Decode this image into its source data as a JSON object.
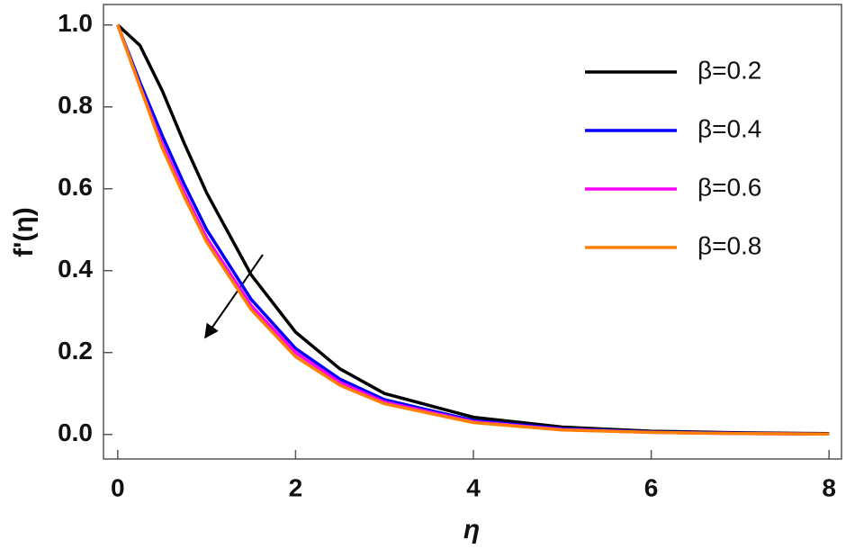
{
  "chart_data": {
    "type": "line",
    "x_label": "η",
    "y_label": "f'(η)",
    "x": [
      0,
      0.25,
      0.5,
      0.75,
      1,
      1.5,
      2,
      2.5,
      3,
      4,
      5,
      6,
      7,
      8
    ],
    "series": [
      {
        "name": "β=0.2",
        "color": "#000000",
        "values": [
          1,
          0.95,
          0.84,
          0.71,
          0.59,
          0.39,
          0.25,
          0.16,
          0.1,
          0.042,
          0.018,
          0.008,
          0.004,
          0.002
        ]
      },
      {
        "name": "β=0.4",
        "color": "#0000ff",
        "values": [
          1,
          0.86,
          0.73,
          0.61,
          0.5,
          0.33,
          0.21,
          0.135,
          0.085,
          0.034,
          0.014,
          0.006,
          0.003,
          0.001
        ]
      },
      {
        "name": "β=0.6",
        "color": "#ff00ff",
        "values": [
          1,
          0.85,
          0.71,
          0.59,
          0.48,
          0.315,
          0.2,
          0.127,
          0.079,
          0.031,
          0.012,
          0.005,
          0.002,
          0.001
        ]
      },
      {
        "name": "β=0.8",
        "color": "#ff8000",
        "values": [
          1,
          0.85,
          0.7,
          0.58,
          0.47,
          0.305,
          0.19,
          0.12,
          0.075,
          0.029,
          0.011,
          0.005,
          0.002,
          0.001
        ]
      }
    ],
    "xlim": [
      -0.16,
      8.14
    ],
    "ylim": [
      -0.06,
      1.05
    ],
    "xticks": [
      0,
      2,
      4,
      6,
      8
    ],
    "yticks": [
      {
        "value": 0,
        "label": "0.0"
      },
      0.2,
      0.4,
      0.6,
      0.8,
      {
        "value": 1,
        "label": "1.0"
      }
    ],
    "legend": "top-right"
  }
}
